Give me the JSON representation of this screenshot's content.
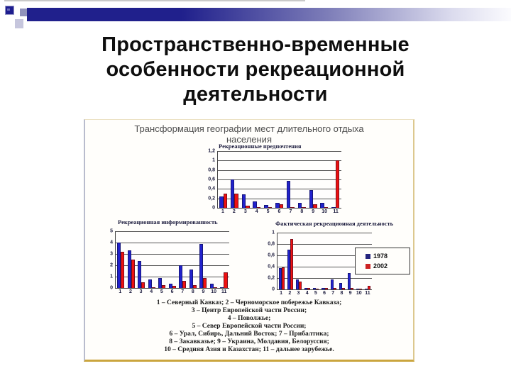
{
  "slide": {
    "title_lines": [
      "Пространственно-временные",
      "особенности рекреационной",
      "деятельности"
    ]
  },
  "figure": {
    "title_line1": "Трансформация географии мест длительного отдыха",
    "title_line2": "населения",
    "caption_lines": [
      "1 – Северный Кавказ;  2 – Черноморское побережье Кавказа;",
      "3 – Центр Европейской части России;",
      "4 – Поволжье;",
      "5 – Север Европейской части России;",
      "6 – Урал, Сибирь, Дальний Восток;  7 – Прибалтика;",
      "8 – Закавказье;  9 – Украина, Молдавия, Белоруссия;",
      "10 – Средняя Азия и Казахстан; 11 – дальнее зарубежье."
    ]
  },
  "colors": {
    "accent_bar": "#20208c",
    "series_1978": "#2222cc",
    "series_2002": "#ee1111",
    "legend_1978_marker": "#24247e",
    "legend_2002_marker": "#cc2222",
    "frame_gold": "#caa53e"
  },
  "chart_data": [
    {
      "type": "bar",
      "title": "Рекреационные предпочтения",
      "categories": [
        "1",
        "2",
        "3",
        "4",
        "5",
        "6",
        "7",
        "8",
        "9",
        "10",
        "11"
      ],
      "series": [
        {
          "name": "1978",
          "color": "#2222cc",
          "values": [
            0.24,
            0.6,
            0.28,
            0.13,
            0.06,
            0.1,
            0.57,
            0.1,
            0.38,
            0.1,
            0.01
          ]
        },
        {
          "name": "2002",
          "color": "#ee1111",
          "values": [
            0.3,
            0.3,
            0.05,
            0.01,
            0.01,
            0.07,
            0.01,
            0.01,
            0.07,
            0.01,
            1.0
          ]
        }
      ],
      "ylim": [
        0,
        1.2
      ],
      "yticks": [
        "1,2",
        "1",
        "0,8",
        "0,6",
        "0,4",
        "0,2",
        "0"
      ],
      "grid": true,
      "legend": null
    },
    {
      "type": "bar",
      "title": "Рекреационная  информированность",
      "categories": [
        "1",
        "2",
        "3",
        "4",
        "5",
        "6",
        "7",
        "8",
        "9",
        "10",
        "11"
      ],
      "series": [
        {
          "name": "1978",
          "color": "#2222cc",
          "values": [
            4.0,
            3.3,
            2.35,
            0.75,
            0.9,
            0.35,
            2.0,
            1.65,
            3.9,
            0.4,
            0.05
          ]
        },
        {
          "name": "2002",
          "color": "#ee1111",
          "values": [
            3.2,
            2.5,
            0.5,
            0.05,
            0.25,
            0.2,
            0.6,
            0.25,
            0.85,
            0.05,
            1.35
          ]
        }
      ],
      "ylim": [
        0,
        5
      ],
      "yticks": [
        "5",
        "4",
        "3",
        "2",
        "1",
        "0"
      ],
      "grid": true,
      "legend": null
    },
    {
      "type": "bar",
      "title": "Фактическая  рекреационная  деятельность",
      "categories": [
        "1",
        "2",
        "3",
        "4",
        "5",
        "6",
        "7",
        "8",
        "9",
        "10",
        "11"
      ],
      "series": [
        {
          "name": "1978",
          "color": "#2222cc",
          "values": [
            0.38,
            0.7,
            0.18,
            0.02,
            0.02,
            0.02,
            0.18,
            0.11,
            0.29,
            0.01,
            0.01
          ]
        },
        {
          "name": "2002",
          "color": "#ee1111",
          "values": [
            0.39,
            0.89,
            0.14,
            0.02,
            0.01,
            0.02,
            0.02,
            0.02,
            0.03,
            0.01,
            0.06
          ]
        }
      ],
      "ylim": [
        0,
        1
      ],
      "yticks": [
        "1",
        "0,8",
        "0,6",
        "0,4",
        "0,2",
        "0"
      ],
      "grid": true,
      "legend": {
        "position": "right",
        "entries": [
          {
            "label": "1978",
            "color": "#24247e"
          },
          {
            "label": "2002",
            "color": "#cc2222"
          }
        ]
      }
    }
  ]
}
